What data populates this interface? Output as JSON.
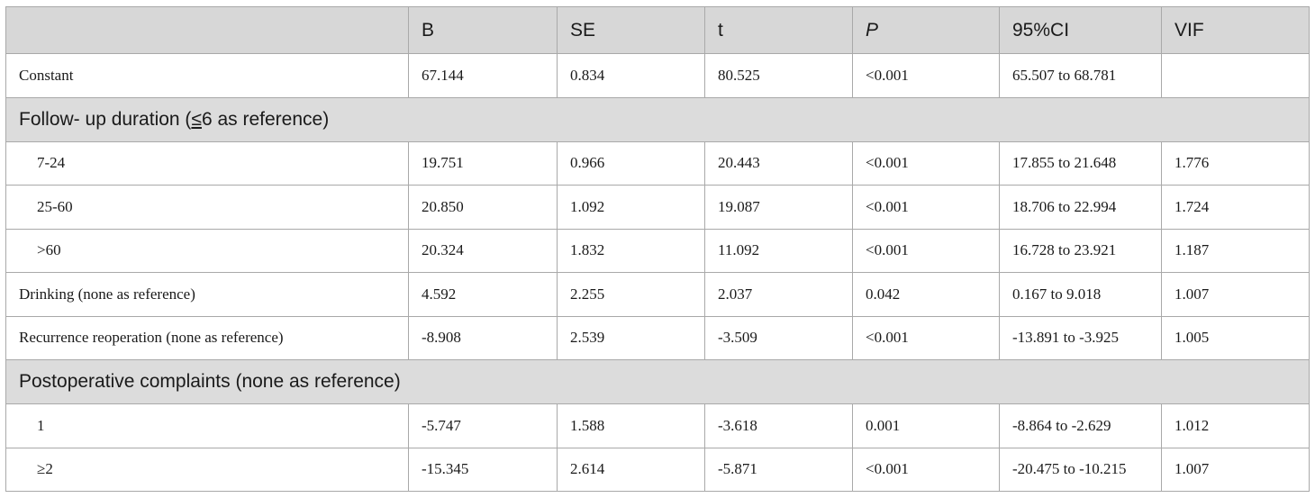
{
  "header": {
    "columns": [
      "",
      "B",
      "SE",
      "t",
      "P",
      "95%CI",
      "VIF"
    ]
  },
  "rows": [
    {
      "label": "Constant",
      "b": "67.144",
      "se": "0.834",
      "t": "80.525",
      "p": "<0.001",
      "ci": "65.507 to 68.781",
      "vif": ""
    },
    {
      "section_pre": "Follow- up duration (",
      "section_sym": "≤",
      "section_post": "6 as reference)"
    },
    {
      "label": "7-24",
      "b": "19.751",
      "se": "0.966",
      "t": "20.443",
      "p": "<0.001",
      "ci": "17.855 to 21.648",
      "vif": "1.776"
    },
    {
      "label": "25-60",
      "b": "20.850",
      "se": "1.092",
      "t": "19.087",
      "p": "<0.001",
      "ci": "18.706 to 22.994",
      "vif": "1.724"
    },
    {
      "label": ">60",
      "b": "20.324",
      "se": "1.832",
      "t": "11.092",
      "p": "<0.001",
      "ci": "16.728 to 23.921",
      "vif": "1.187"
    },
    {
      "label": "Drinking (none as reference)",
      "b": "4.592",
      "se": "2.255",
      "t": "2.037",
      "p": "0.042",
      "ci": "0.167 to 9.018",
      "vif": "1.007"
    },
    {
      "label": "Recurrence reoperation (none as reference)",
      "b": "-8.908",
      "se": "2.539",
      "t": "-3.509",
      "p": "<0.001",
      "ci": "-13.891 to -3.925",
      "vif": "1.005"
    },
    {
      "section": "Postoperative complaints (none as reference)"
    },
    {
      "label": "1",
      "b": "-5.747",
      "se": "1.588",
      "t": "-3.618",
      "p": "0.001",
      "ci": "-8.864 to -2.629",
      "vif": "1.012"
    },
    {
      "label": "≥2",
      "b": "-15.345",
      "se": "2.614",
      "t": "-5.871",
      "p": "<0.001",
      "ci": "-20.475 to -10.215",
      "vif": "1.007"
    }
  ]
}
